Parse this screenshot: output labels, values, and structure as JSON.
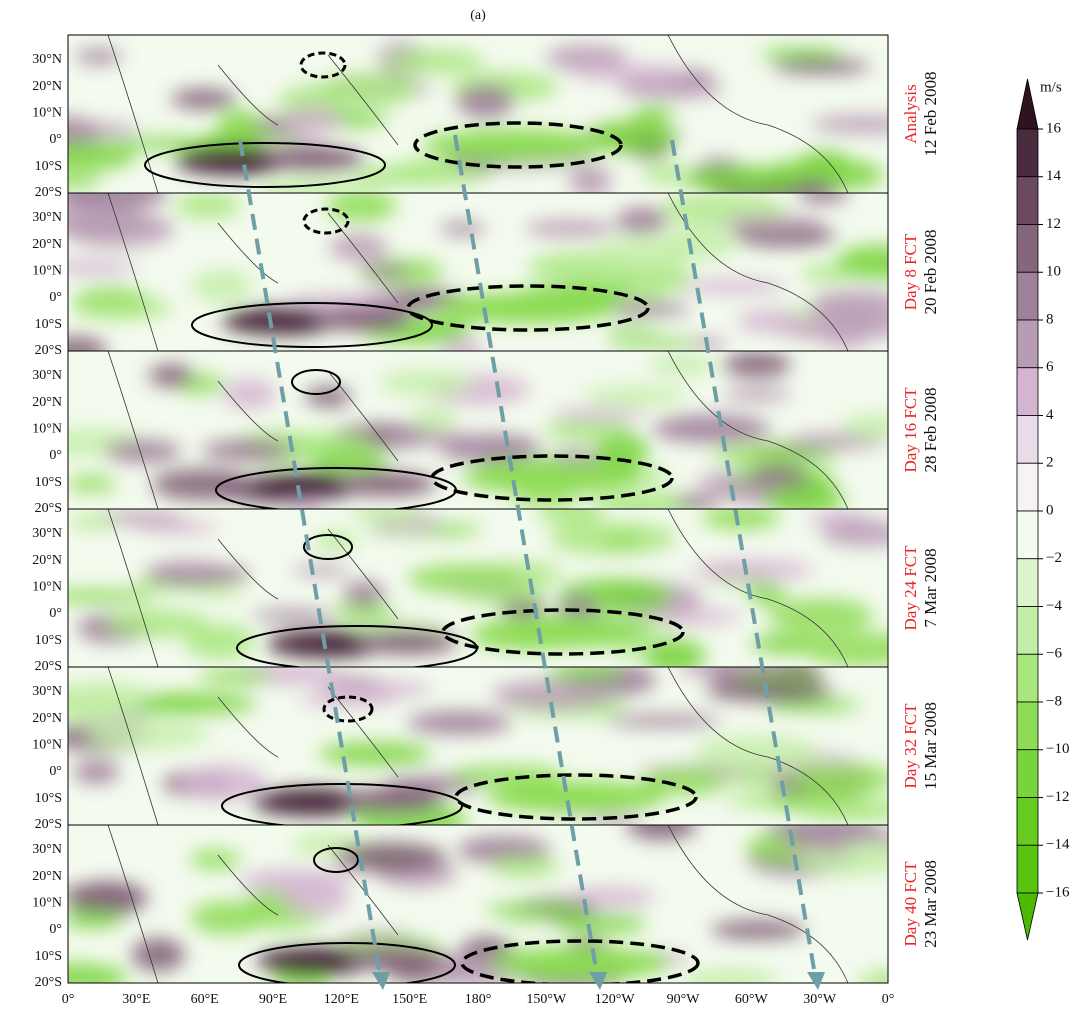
{
  "title": "(a)",
  "panels": [
    {
      "label": "Analysis",
      "date": "12 Feb 2008"
    },
    {
      "label": "Day 8 FCT",
      "date": "20 Feb 2008"
    },
    {
      "label": "Day 16 FCT",
      "date": "28 Feb 2008"
    },
    {
      "label": "Day 24 FCT",
      "date": "7 Mar 2008"
    },
    {
      "label": "Day 32 FCT",
      "date": "15 Mar 2008"
    },
    {
      "label": "Day 40 FCT",
      "date": "23 Mar 2008"
    }
  ],
  "lat_ticks": [
    "30°N",
    "20°N",
    "10°N",
    "0°",
    "10°S",
    "20°S"
  ],
  "lon_ticks": [
    "0°",
    "30°E",
    "60°E",
    "90°E",
    "120°E",
    "150°E",
    "180°",
    "150°W",
    "120°W",
    "90°W",
    "60°W",
    "30°W",
    "0°"
  ],
  "colorbar": {
    "unit": "m/s",
    "ticks": [
      16,
      14,
      12,
      10,
      8,
      6,
      4,
      2,
      0,
      {
        "value": -2,
        "label": "−2"
      },
      {
        "value": -4,
        "label": "−4"
      },
      {
        "value": -6,
        "label": "−6"
      },
      {
        "value": -8,
        "label": "−8"
      },
      {
        "value": -10,
        "label": "−10"
      },
      {
        "value": -12,
        "label": "−12"
      },
      {
        "value": -14,
        "label": "−14"
      },
      {
        "value": -16,
        "label": "−16"
      }
    ],
    "colors": [
      "#2d1420",
      "#4a2a3d",
      "#6b4a60",
      "#86667c",
      "#9f819a",
      "#b89bb4",
      "#d4b4d0",
      "#eadbe8",
      "#f7f3f3",
      "#f4fbef",
      "#dcf5cc",
      "#c4eea8",
      "#a8e67e",
      "#8edc55",
      "#78d43a",
      "#66cc22",
      "#58c410",
      "#4cbb00"
    ]
  }
}
